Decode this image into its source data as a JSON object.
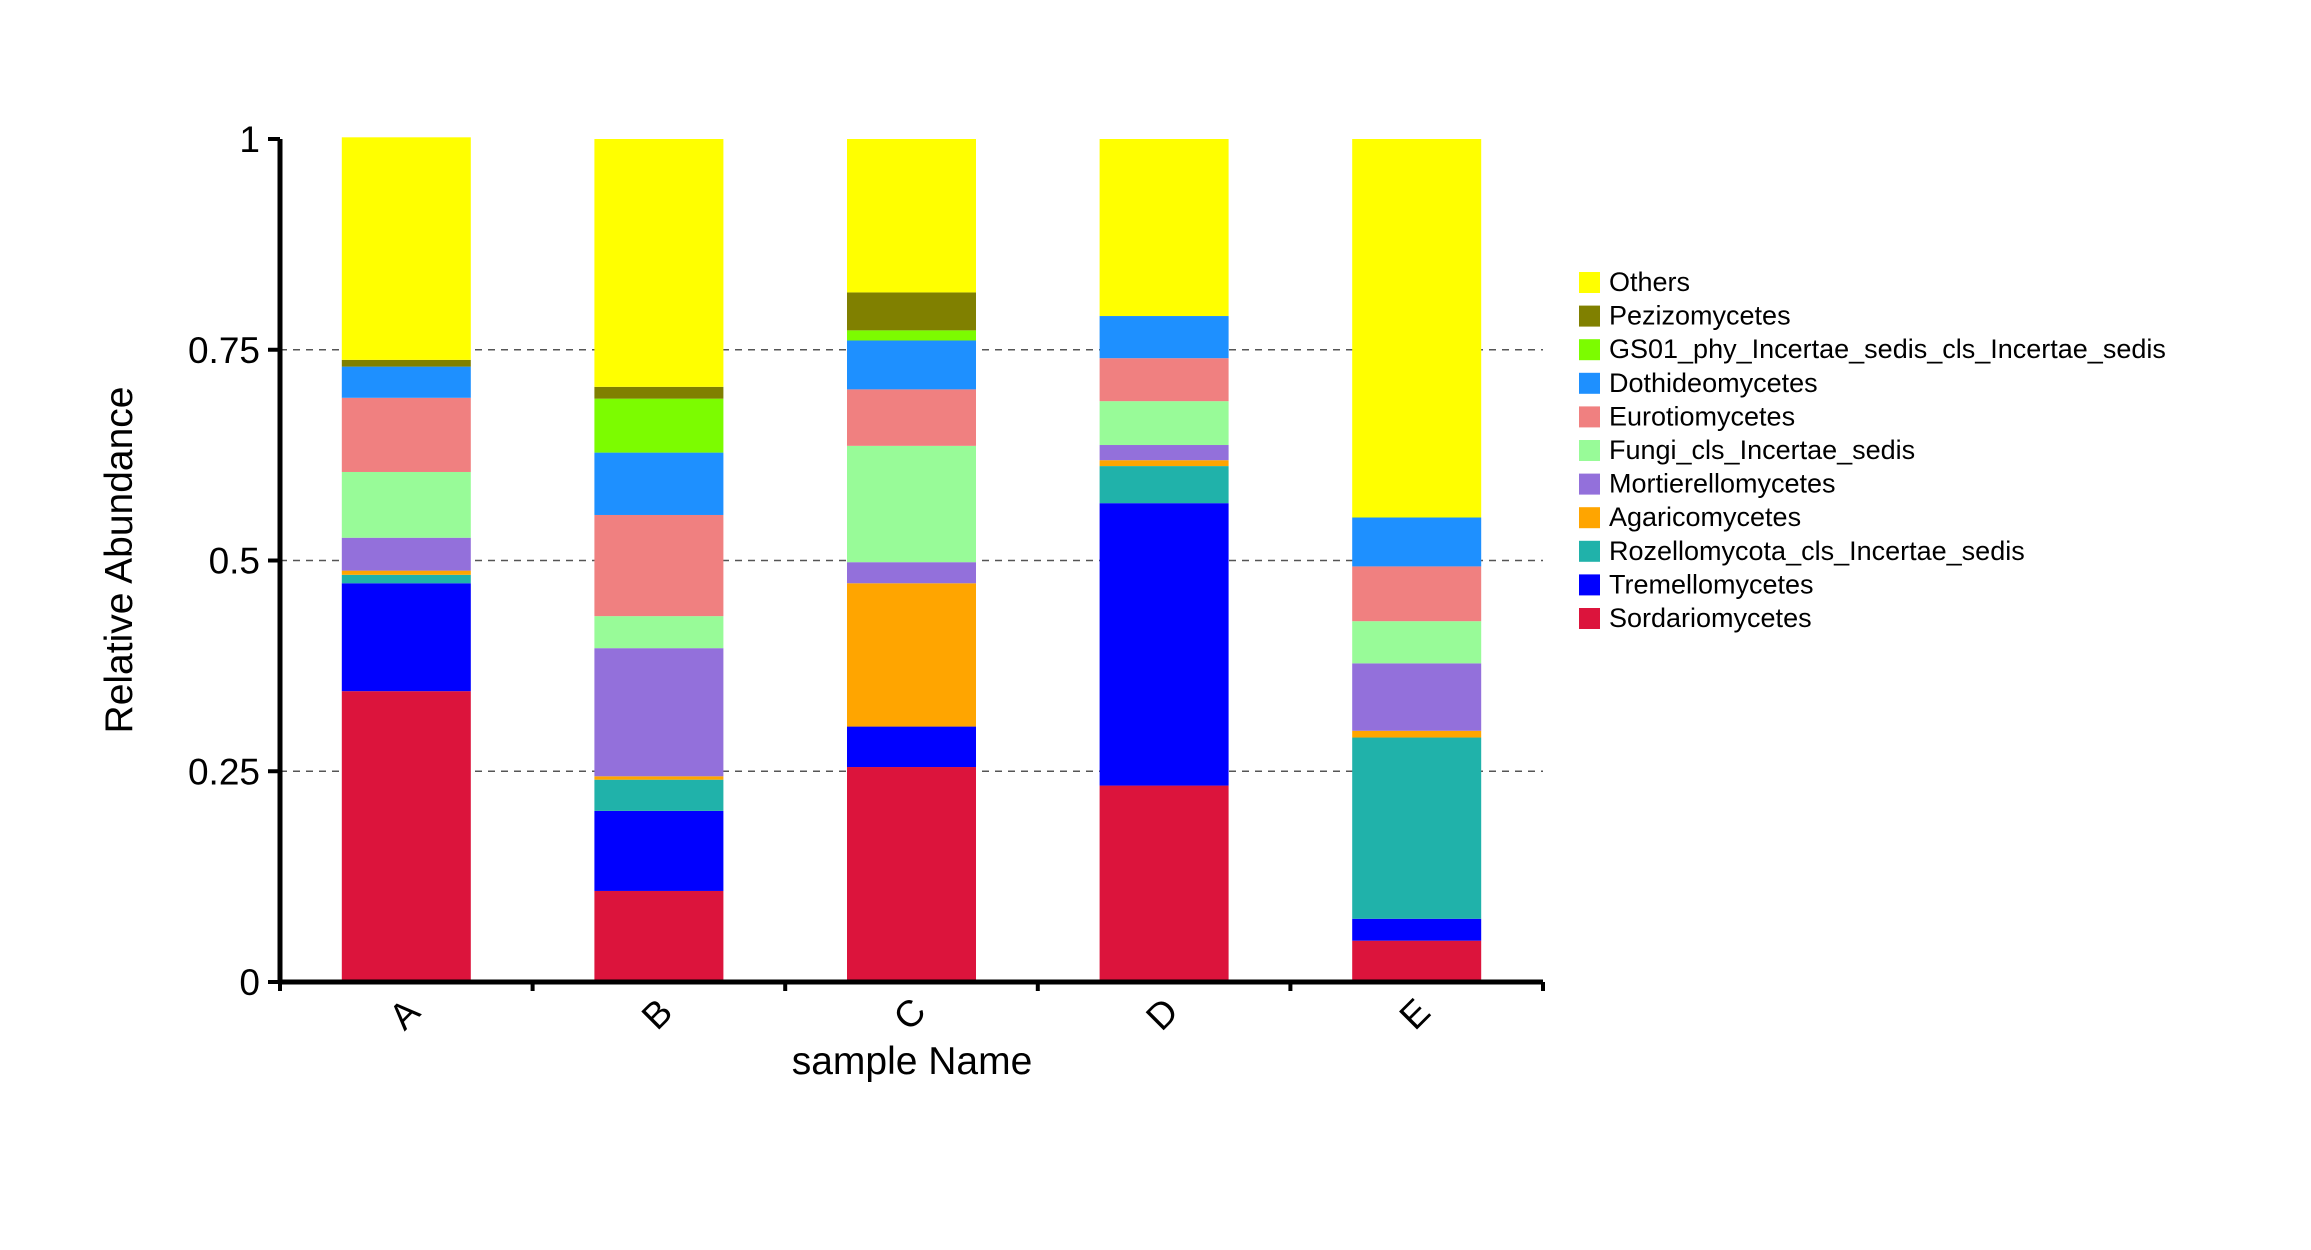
{
  "chart_data": {
    "type": "bar",
    "stacked": true,
    "title": "",
    "xlabel": "sample Name",
    "ylabel": "Relative Abundance",
    "ylim": [
      0,
      1
    ],
    "yticks": [
      0,
      0.25,
      0.5,
      0.75,
      1
    ],
    "ytick_labels": [
      "0",
      "0.25",
      "0.5",
      "0.75",
      "1"
    ],
    "grid": "dashed horizontal at 0.25, 0.5, 0.75",
    "legend_position": "right",
    "categories": [
      "A",
      "B",
      "C",
      "D",
      "E"
    ],
    "series": [
      {
        "name": "Sordariomycetes",
        "color": "#DC143C",
        "values": [
          0.345,
          0.108,
          0.255,
          0.233,
          0.049
        ]
      },
      {
        "name": "Tremellomycetes",
        "color": "#0000FF",
        "values": [
          0.128,
          0.095,
          0.048,
          0.335,
          0.026
        ]
      },
      {
        "name": "Rozellomycota_cls_Incertae_sedis",
        "color": "#20B2AA",
        "values": [
          0.01,
          0.037,
          0.0,
          0.044,
          0.215
        ]
      },
      {
        "name": "Agaricomycetes",
        "color": "#FFA500",
        "values": [
          0.005,
          0.004,
          0.17,
          0.007,
          0.008
        ]
      },
      {
        "name": "Mortierellomycetes",
        "color": "#9370DB",
        "values": [
          0.039,
          0.152,
          0.025,
          0.018,
          0.08
        ]
      },
      {
        "name": "Fungi_cls_Incertae_sedis",
        "color": "#98FB98",
        "values": [
          0.078,
          0.038,
          0.138,
          0.052,
          0.05
        ]
      },
      {
        "name": "Eurotiomycetes",
        "color": "#F08080",
        "values": [
          0.088,
          0.12,
          0.067,
          0.051,
          0.065
        ]
      },
      {
        "name": "Dothideomycetes",
        "color": "#1E90FF",
        "values": [
          0.037,
          0.074,
          0.058,
          0.05,
          0.058
        ]
      },
      {
        "name": "GS01_phy_Incertae_sedis_cls_Incertae_sedis",
        "color": "#7CFC00",
        "values": [
          0.0,
          0.064,
          0.012,
          0.0,
          0.0
        ]
      },
      {
        "name": "Pezizomycetes",
        "color": "#808000",
        "values": [
          0.008,
          0.014,
          0.045,
          0.0,
          0.0
        ]
      },
      {
        "name": "Others",
        "color": "#FFFF00",
        "values": [
          0.264,
          0.294,
          0.182,
          0.21,
          0.449
        ]
      }
    ]
  }
}
